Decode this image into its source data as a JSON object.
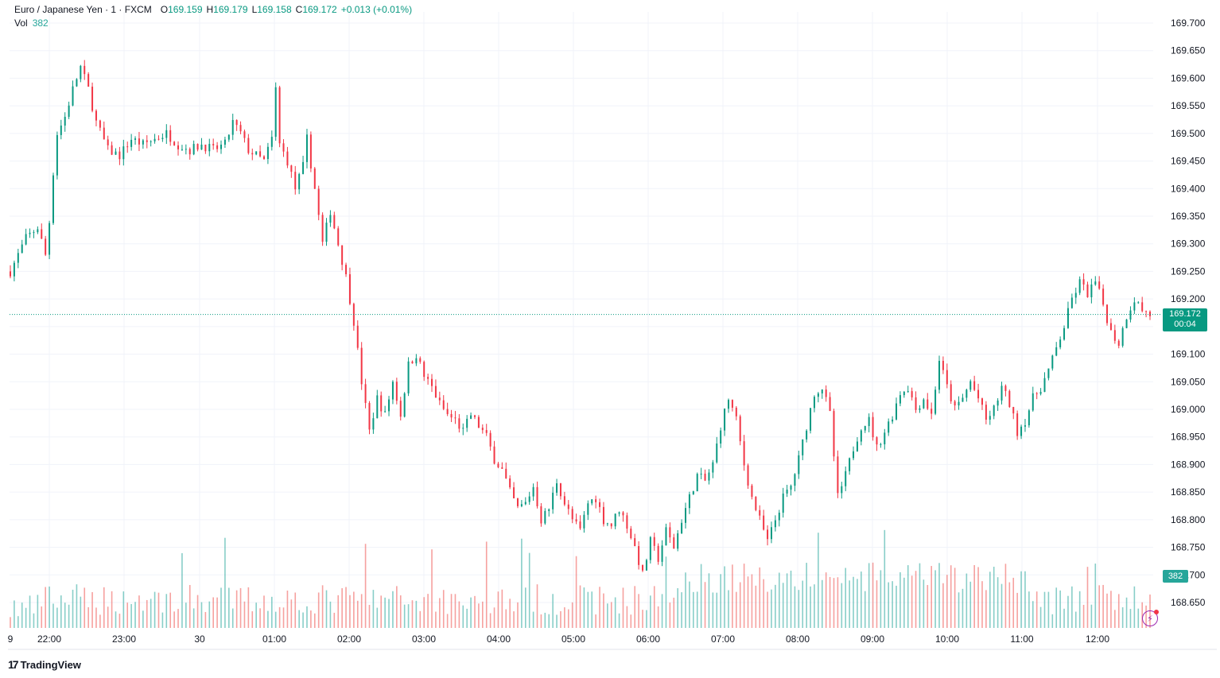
{
  "legend": {
    "symbol": "Euro / Japanese Yen · 1 · FXCM",
    "o_label": "O",
    "o_value": "169.159",
    "h_label": "H",
    "h_value": "169.179",
    "l_label": "L",
    "l_value": "169.158",
    "c_label": "C",
    "c_value": "169.172",
    "change": "+0.013 (+0.01%)",
    "vol_label": "Vol",
    "vol_value": "382"
  },
  "price_badge": {
    "price": "169.172",
    "countdown": "00:04"
  },
  "volume_badge": "382",
  "branding": {
    "name": "TradingView",
    "logo_icon": "tradingview-logo-icon"
  },
  "colors": {
    "up": "#089981",
    "down": "#f23645",
    "vol_up": "#26a69a",
    "vol_down": "#ef5350",
    "grid": "#f0f3fa"
  },
  "chart_data": {
    "type": "candlestick",
    "symbol": "EUR/JPY",
    "interval": "1",
    "y_axis": {
      "min": 168.61,
      "max": 169.72,
      "ticks": [
        "169.700",
        "169.650",
        "169.600",
        "169.550",
        "169.500",
        "169.450",
        "169.400",
        "169.350",
        "169.300",
        "169.250",
        "169.200",
        "169.150",
        "169.100",
        "169.050",
        "169.000",
        "168.950",
        "168.900",
        "168.850",
        "168.800",
        "168.750",
        "168.700",
        "168.650"
      ]
    },
    "x_axis": {
      "ticks": [
        "9",
        "22:00",
        "23:00",
        "30",
        "01:00",
        "02:00",
        "03:00",
        "04:00",
        "05:00",
        "06:00",
        "07:00",
        "08:00",
        "09:00",
        "10:00",
        "11:00",
        "12:00"
      ]
    },
    "grid": true,
    "last_price": 169.172,
    "path_points": [
      [
        0,
        169.25
      ],
      [
        4,
        169.31
      ],
      [
        7,
        169.33
      ],
      [
        9,
        169.28
      ],
      [
        10,
        169.34
      ],
      [
        11,
        169.43
      ],
      [
        12,
        169.5
      ],
      [
        14,
        169.53
      ],
      [
        16,
        169.58
      ],
      [
        18,
        169.62
      ],
      [
        20,
        169.58
      ],
      [
        22,
        169.52
      ],
      [
        25,
        169.47
      ],
      [
        28,
        169.46
      ],
      [
        31,
        169.49
      ],
      [
        34,
        169.48
      ],
      [
        37,
        169.49
      ],
      [
        40,
        169.5
      ],
      [
        43,
        169.48
      ],
      [
        46,
        169.47
      ],
      [
        49,
        169.48
      ],
      [
        52,
        169.47
      ],
      [
        55,
        169.48
      ],
      [
        57,
        169.52
      ],
      [
        59,
        169.5
      ],
      [
        61,
        169.47
      ],
      [
        63,
        169.46
      ],
      [
        65,
        169.45
      ],
      [
        67,
        169.49
      ],
      [
        68,
        169.58
      ],
      [
        69,
        169.48
      ],
      [
        71,
        169.45
      ],
      [
        73,
        169.4
      ],
      [
        75,
        169.44
      ],
      [
        76,
        169.49
      ],
      [
        78,
        169.4
      ],
      [
        80,
        169.3
      ],
      [
        82,
        169.36
      ],
      [
        84,
        169.3
      ],
      [
        86,
        169.24
      ],
      [
        88,
        169.16
      ],
      [
        90,
        169.05
      ],
      [
        92,
        168.96
      ],
      [
        94,
        169.02
      ],
      [
        96,
        168.99
      ],
      [
        98,
        169.05
      ],
      [
        100,
        168.99
      ],
      [
        102,
        169.08
      ],
      [
        104,
        169.1
      ],
      [
        106,
        169.06
      ],
      [
        108,
        169.04
      ],
      [
        110,
        169.01
      ],
      [
        112,
        168.99
      ],
      [
        114,
        168.98
      ],
      [
        116,
        168.96
      ],
      [
        118,
        168.99
      ],
      [
        120,
        168.97
      ],
      [
        122,
        168.95
      ],
      [
        124,
        168.91
      ],
      [
        126,
        168.89
      ],
      [
        128,
        168.85
      ],
      [
        130,
        168.82
      ],
      [
        132,
        168.83
      ],
      [
        134,
        168.86
      ],
      [
        136,
        168.8
      ],
      [
        138,
        168.82
      ],
      [
        140,
        168.87
      ],
      [
        142,
        168.83
      ],
      [
        144,
        168.8
      ],
      [
        146,
        168.78
      ],
      [
        148,
        168.83
      ],
      [
        150,
        168.84
      ],
      [
        152,
        168.8
      ],
      [
        154,
        168.79
      ],
      [
        156,
        168.82
      ],
      [
        158,
        168.79
      ],
      [
        160,
        168.75
      ],
      [
        162,
        168.7
      ],
      [
        164,
        168.76
      ],
      [
        166,
        168.73
      ],
      [
        168,
        168.78
      ],
      [
        170,
        168.75
      ],
      [
        172,
        168.8
      ],
      [
        174,
        168.84
      ],
      [
        176,
        168.88
      ],
      [
        178,
        168.87
      ],
      [
        180,
        168.9
      ],
      [
        182,
        168.97
      ],
      [
        184,
        169.02
      ],
      [
        186,
        168.98
      ],
      [
        188,
        168.9
      ],
      [
        190,
        168.84
      ],
      [
        192,
        168.8
      ],
      [
        194,
        168.76
      ],
      [
        196,
        168.8
      ],
      [
        198,
        168.84
      ],
      [
        200,
        168.86
      ],
      [
        202,
        168.91
      ],
      [
        204,
        168.97
      ],
      [
        206,
        169.03
      ],
      [
        208,
        169.04
      ],
      [
        210,
        168.99
      ],
      [
        212,
        168.84
      ],
      [
        214,
        168.88
      ],
      [
        216,
        168.93
      ],
      [
        218,
        168.97
      ],
      [
        220,
        168.98
      ],
      [
        222,
        168.93
      ],
      [
        224,
        168.96
      ],
      [
        226,
        168.99
      ],
      [
        228,
        169.03
      ],
      [
        230,
        169.04
      ],
      [
        232,
        169.0
      ],
      [
        234,
        169.02
      ],
      [
        236,
        168.99
      ],
      [
        238,
        169.09
      ],
      [
        240,
        169.04
      ],
      [
        242,
        169.0
      ],
      [
        244,
        169.02
      ],
      [
        246,
        169.05
      ],
      [
        248,
        169.02
      ],
      [
        250,
        168.98
      ],
      [
        252,
        169.0
      ],
      [
        254,
        169.04
      ],
      [
        256,
        169.01
      ],
      [
        258,
        168.96
      ],
      [
        260,
        168.98
      ],
      [
        262,
        169.02
      ],
      [
        264,
        169.04
      ],
      [
        266,
        169.07
      ],
      [
        268,
        169.11
      ],
      [
        270,
        169.15
      ],
      [
        272,
        169.2
      ],
      [
        274,
        169.23
      ],
      [
        276,
        169.21
      ],
      [
        278,
        169.23
      ],
      [
        280,
        169.19
      ],
      [
        282,
        169.14
      ],
      [
        284,
        169.12
      ],
      [
        286,
        169.17
      ],
      [
        288,
        169.2
      ],
      [
        290,
        169.18
      ],
      [
        292,
        169.172
      ]
    ]
  }
}
